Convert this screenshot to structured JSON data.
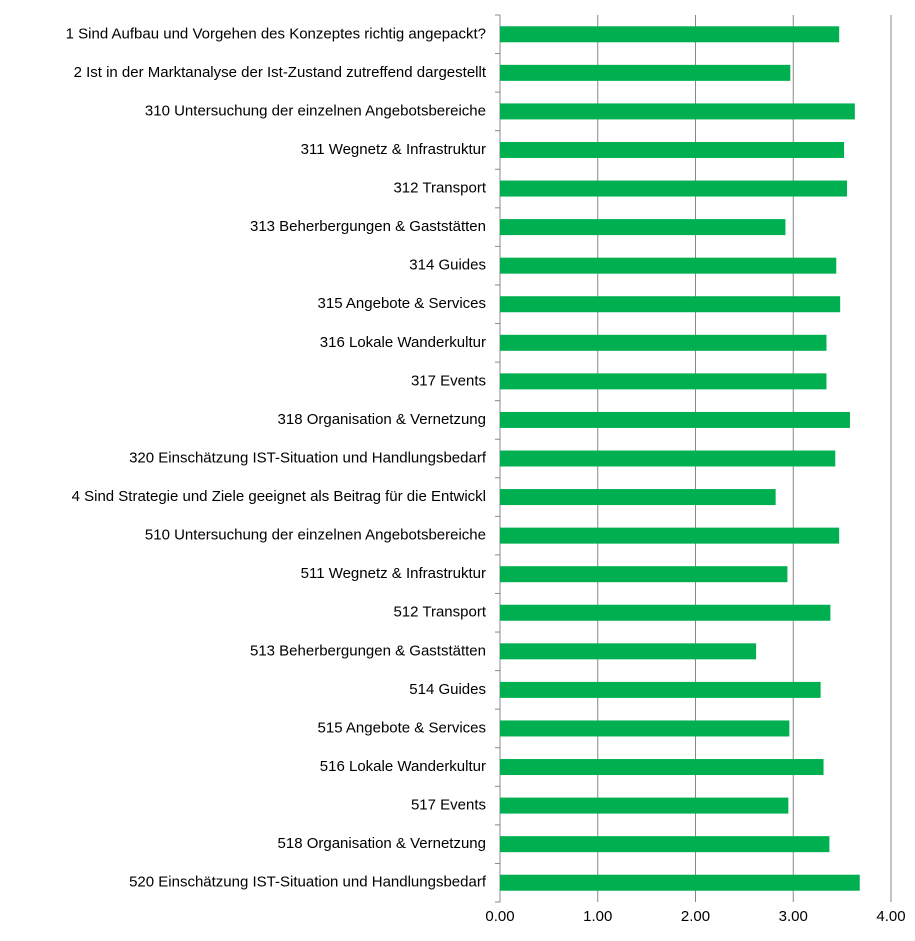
{
  "chart_data": {
    "type": "barh",
    "categories": [
      "1 Sind Aufbau und Vorgehen des Konzeptes richtig angepackt?",
      "2 Ist in der Marktanalyse der Ist-Zustand zutreffend dargestellt",
      "310 Untersuchung der einzelnen Angebotsbereiche",
      "311 Wegnetz & Infrastruktur",
      "312 Transport",
      "313 Beherbergungen & Gaststätten",
      "314 Guides",
      "315 Angebote & Services",
      "316 Lokale Wanderkultur",
      "317 Events",
      "318 Organisation & Vernetzung",
      "320 Einschätzung IST-Situation und Handlungsbedarf",
      "4 Sind Strategie und Ziele geeignet als Beitrag für die Entwickl",
      "510 Untersuchung der einzelnen Angebotsbereiche",
      "511 Wegnetz & Infrastruktur",
      "512 Transport",
      "513 Beherbergungen & Gaststätten",
      "514 Guides",
      "515 Angebote & Services",
      "516 Lokale Wanderkultur",
      "517 Events",
      "518 Organisation & Vernetzung",
      "520 Einschätzung IST-Situation und Handlungsbedarf"
    ],
    "values": [
      3.47,
      2.97,
      3.63,
      3.52,
      3.55,
      2.92,
      3.44,
      3.48,
      3.34,
      3.34,
      3.58,
      3.43,
      2.82,
      3.47,
      2.94,
      3.38,
      2.62,
      3.28,
      2.96,
      3.31,
      2.95,
      3.37,
      3.68
    ],
    "color": "#00b050",
    "xlim": [
      0,
      4
    ],
    "xticks": [
      {
        "value": 0,
        "label": "0.00"
      },
      {
        "value": 1,
        "label": "1.00"
      },
      {
        "value": 2,
        "label": "2.00"
      },
      {
        "value": 3,
        "label": "3.00"
      },
      {
        "value": 4,
        "label": "4.00"
      }
    ],
    "grid": true
  }
}
